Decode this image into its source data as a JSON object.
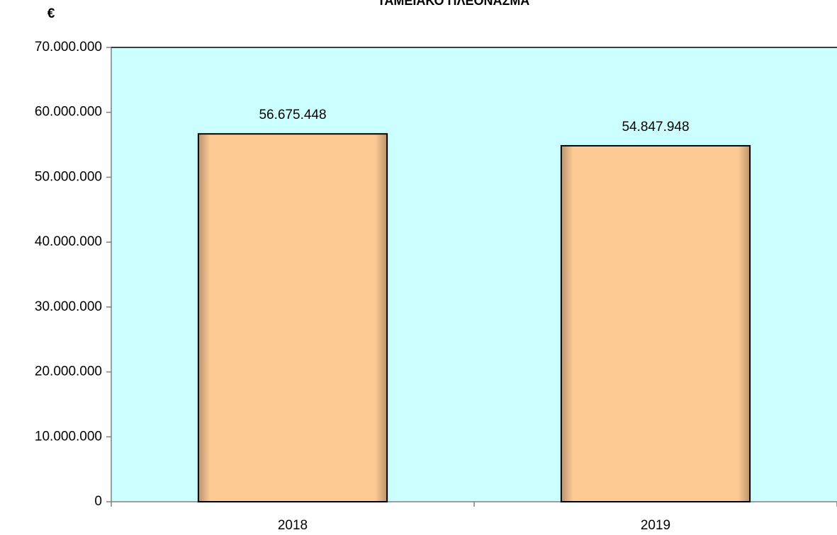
{
  "chart_data": {
    "type": "bar",
    "title": "ΤΑΜΕΙΑΚΟ ΠΛΕΟΝΑΣΜΑ",
    "y_label": "€",
    "categories": [
      "2018",
      "2019"
    ],
    "values": [
      56675448,
      54847948
    ],
    "value_labels": [
      "56.675.448",
      "54.847.948"
    ],
    "color": "#fdca93",
    "plot_background": "#ccffff",
    "ylim": [
      0,
      70000000
    ],
    "yticks": [
      0,
      {
        "value": 10000000,
        "label": "10.000.000"
      },
      {
        "value": 20000000,
        "label": "20.000.000"
      },
      {
        "value": 30000000,
        "label": "30.000.000"
      },
      {
        "value": 40000000,
        "label": "40.000.000"
      },
      {
        "value": 50000000,
        "label": "50.000.000"
      },
      {
        "value": 60000000,
        "label": "60.000.000"
      },
      {
        "value": 70000000,
        "label": "70.000.000"
      }
    ],
    "grid": false
  }
}
